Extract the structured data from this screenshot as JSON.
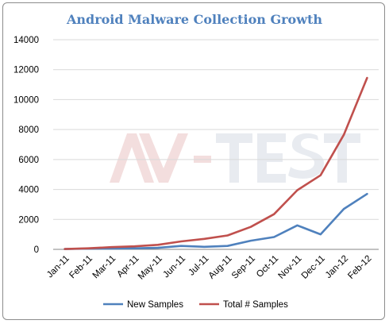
{
  "chart_data": {
    "type": "line",
    "title": "Android Malware Collection Growth",
    "xlabel": "",
    "ylabel": "",
    "categories": [
      "Jan-11",
      "Feb-11",
      "Mar-11",
      "Apr-11",
      "May-11",
      "Jun-11",
      "Jul-11",
      "Aug-11",
      "Sep-11",
      "Oct-11",
      "Nov-11",
      "Dec-11",
      "Jan-12",
      "Feb-12"
    ],
    "ylim": [
      0,
      14000
    ],
    "yticks": [
      0,
      2000,
      4000,
      6000,
      8000,
      10000,
      12000,
      14000
    ],
    "grid": true,
    "legend_position": "bottom",
    "series": [
      {
        "name": "New Samples",
        "color": "#4f81bd",
        "values": [
          20,
          50,
          60,
          70,
          100,
          230,
          170,
          230,
          580,
          820,
          1600,
          1000,
          2700,
          3700
        ]
      },
      {
        "name": "Total # Samples",
        "color": "#c0504d",
        "values": [
          20,
          70,
          150,
          200,
          300,
          530,
          700,
          930,
          1500,
          2350,
          3950,
          4950,
          7650,
          11450
        ]
      }
    ]
  },
  "watermark": {
    "text": "AV-TEST",
    "colors": [
      "#c0504d",
      "#a6b4c8"
    ]
  }
}
